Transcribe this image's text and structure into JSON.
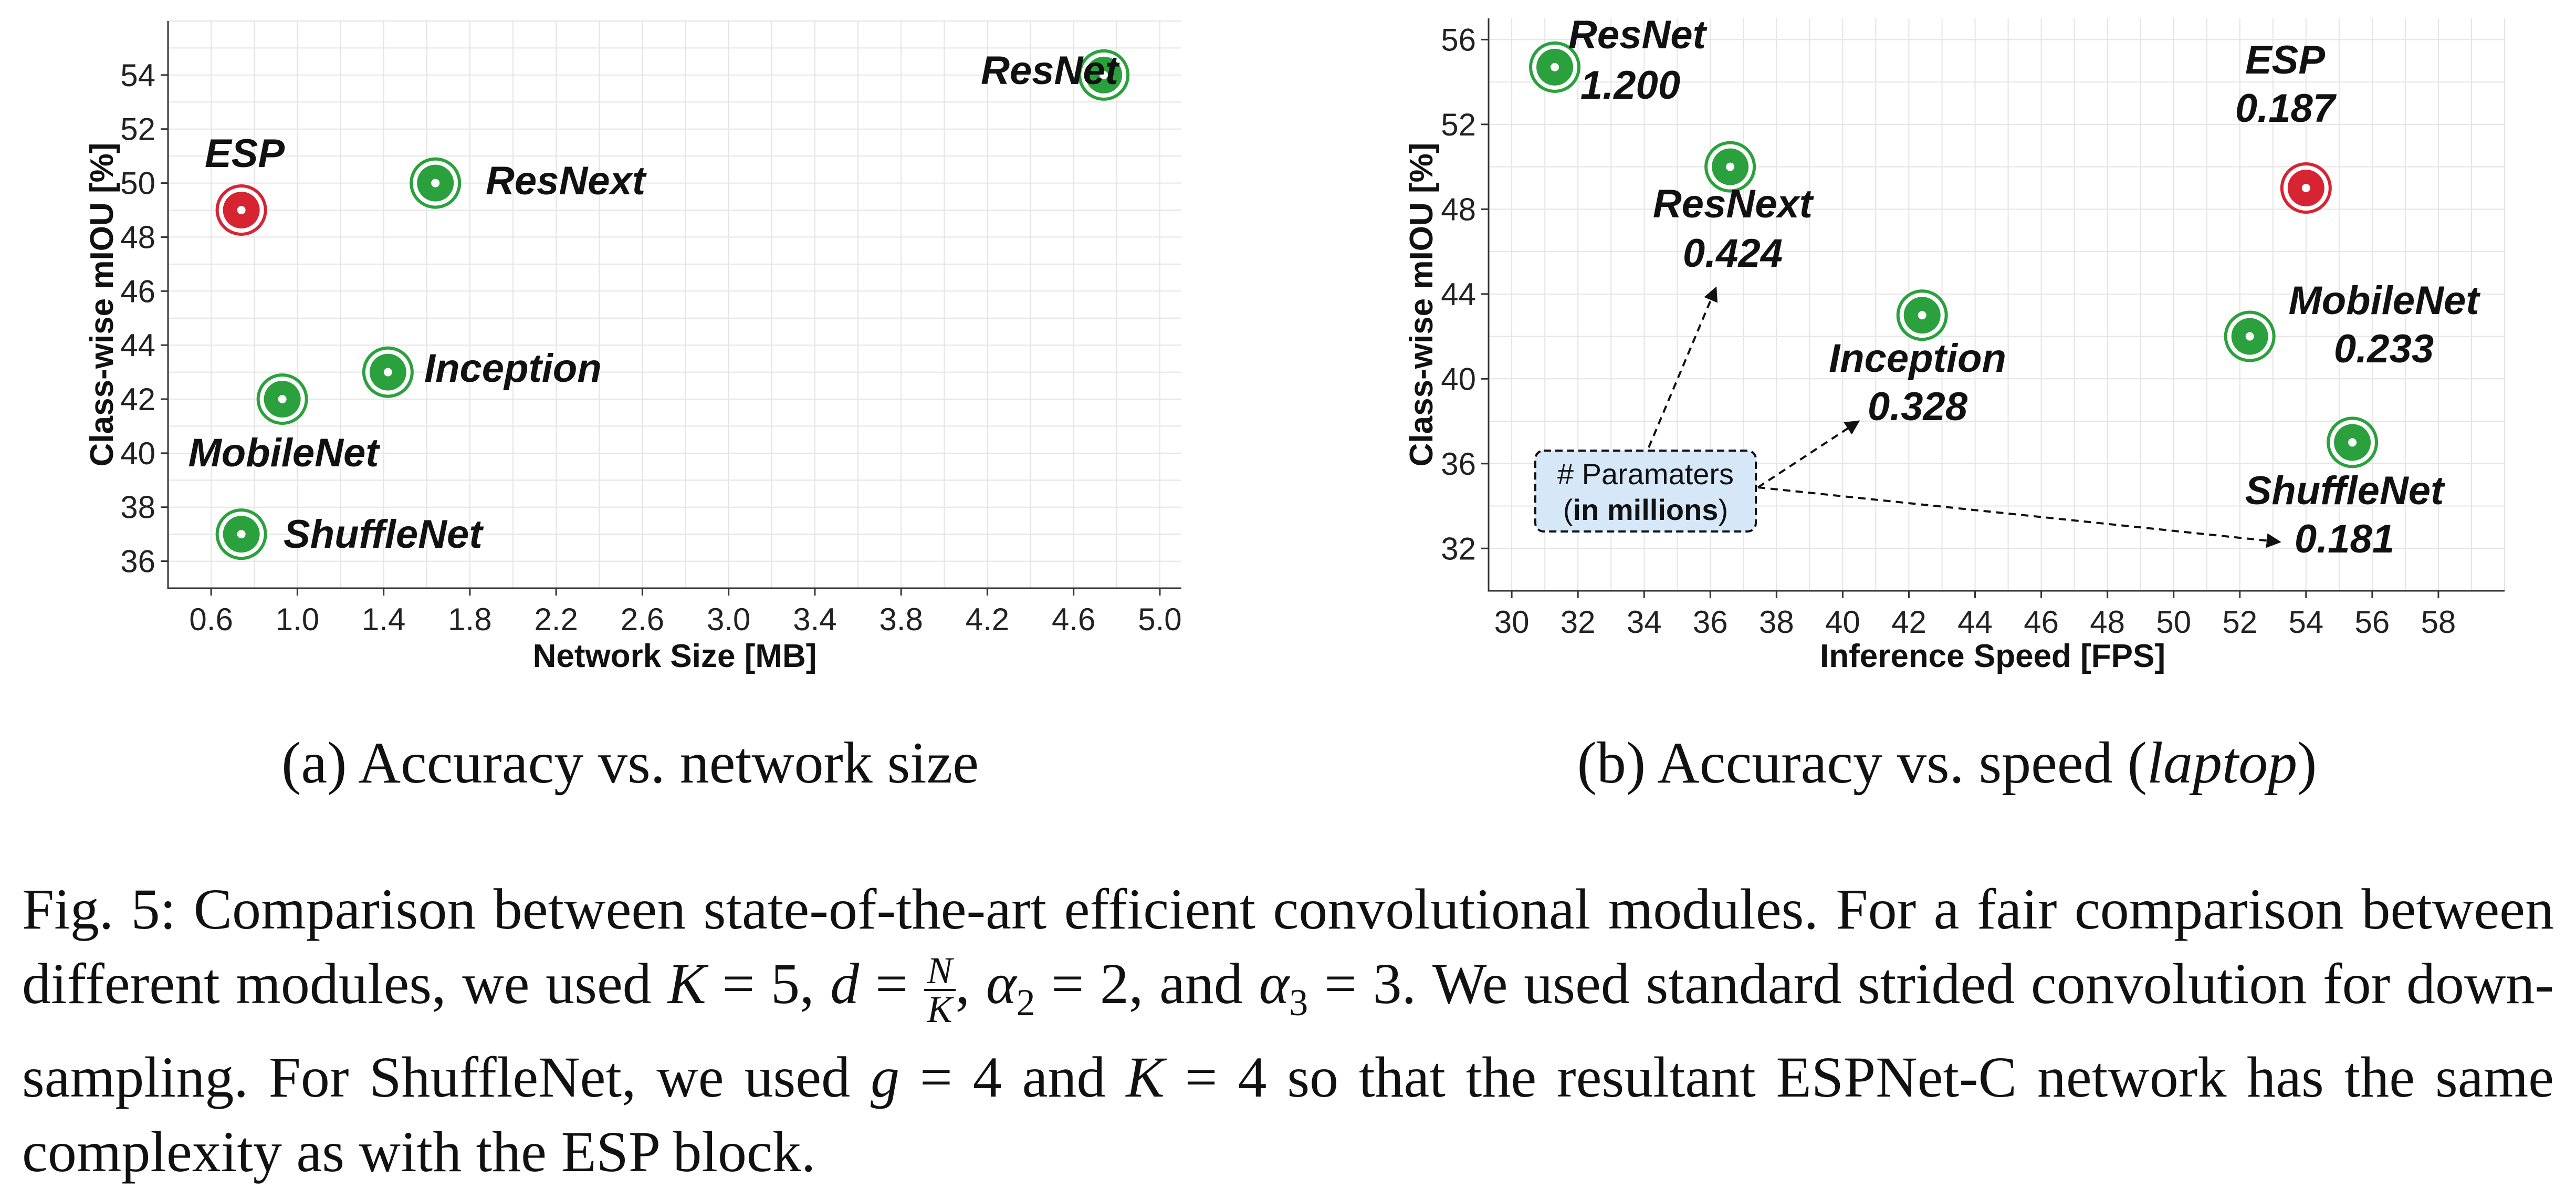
{
  "colors": {
    "proposed": "#d62433",
    "baseline": "#2aa13c",
    "box_fill": "#d6e8f8"
  },
  "chart_data": [
    {
      "type": "scatter",
      "subcaption": "(a) Accuracy vs. network size",
      "xlabel": "Network Size [MB]",
      "ylabel": "Class-wise mIOU [%]",
      "xlim": [
        0.4,
        5.1
      ],
      "ylim": [
        35,
        56
      ],
      "xticks": [
        0.6,
        1.0,
        1.4,
        1.8,
        2.2,
        2.6,
        3.0,
        3.4,
        3.8,
        4.2,
        4.6,
        5.0
      ],
      "xtick_labels": [
        "0.6",
        "1.0",
        "1.4",
        "1.8",
        "2.2",
        "2.6",
        "3.0",
        "3.4",
        "3.8",
        "4.2",
        "4.6",
        "5.0"
      ],
      "yticks": [
        36,
        38,
        40,
        42,
        44,
        46,
        48,
        50,
        52,
        54
      ],
      "ytick_labels": [
        "36",
        "38",
        "40",
        "42",
        "44",
        "46",
        "48",
        "50",
        "52",
        "54"
      ],
      "grid": true,
      "points": [
        {
          "name": "ESP",
          "x": 0.74,
          "y": 49,
          "highlight": true
        },
        {
          "name": "ResNet",
          "x": 4.74,
          "y": 54,
          "highlight": false
        },
        {
          "name": "ResNext",
          "x": 1.64,
          "y": 50,
          "highlight": false
        },
        {
          "name": "Inception",
          "x": 1.42,
          "y": 43,
          "highlight": false
        },
        {
          "name": "MobileNet",
          "x": 0.93,
          "y": 42,
          "highlight": false
        },
        {
          "name": "ShuffleNet",
          "x": 0.74,
          "y": 37,
          "highlight": false
        }
      ]
    },
    {
      "type": "scatter",
      "subcaption_prefix": "(b) Accuracy vs. speed (",
      "subcaption_italic": "laptop",
      "subcaption_suffix": ")",
      "xlabel": "Inference Speed [FPS]",
      "ylabel": "Class-wise mIOU [%]",
      "xlim": [
        29.3,
        60
      ],
      "ylim": [
        30,
        57
      ],
      "xticks": [
        30,
        32,
        34,
        36,
        38,
        40,
        42,
        44,
        46,
        48,
        50,
        52,
        54,
        56,
        58
      ],
      "xtick_labels": [
        "30",
        "32",
        "34",
        "36",
        "38",
        "40",
        "42",
        "44",
        "46",
        "48",
        "50",
        "52",
        "54",
        "56",
        "58"
      ],
      "yticks": [
        32,
        36,
        40,
        44,
        48,
        52,
        56
      ],
      "ytick_labels": [
        "32",
        "36",
        "40",
        "44",
        "48",
        "52",
        "56"
      ],
      "grid": true,
      "points": [
        {
          "name": "ESP",
          "params": "0.187",
          "x": 54.0,
          "y": 49,
          "highlight": true
        },
        {
          "name": "ResNet",
          "params": "1.200",
          "x": 31.3,
          "y": 54.7,
          "highlight": false
        },
        {
          "name": "ResNext",
          "params": "0.424",
          "x": 36.6,
          "y": 50,
          "highlight": false
        },
        {
          "name": "Inception",
          "params": "0.328",
          "x": 42.4,
          "y": 43,
          "highlight": false
        },
        {
          "name": "MobileNet",
          "params": "0.233",
          "x": 52.3,
          "y": 42,
          "highlight": false
        },
        {
          "name": "ShuffleNet",
          "params": "0.181",
          "x": 55.4,
          "y": 37,
          "highlight": false
        }
      ],
      "annotation": {
        "line1": "# Paramaters",
        "line2_open": "(",
        "line2_bold": "in millions",
        "line2_close": ")"
      }
    }
  ],
  "caption": {
    "part1": "Fig. 5: Comparison between state-of-the-art efficient convolutional modules. For a fair comparison between different modules, we used ",
    "k5": "K",
    "eq5": " = 5, ",
    "d": "d",
    "eq_d": " = ",
    "frac_num": "N",
    "frac_den": "K",
    "comma1": ", ",
    "alpha2": "α",
    "sub2": "2",
    "eq_a2": " = 2, and ",
    "alpha3": "α",
    "sub3": "3",
    "part2": " = 3. We used standard strided convolution for down-sampling. For ShuffleNet, we used ",
    "g": "g",
    "eq_g": " = 4 and ",
    "k4": "K",
    "part3": " = 4 so that the resultant ESPNet-C network has the same complexity as with the ESP block."
  }
}
